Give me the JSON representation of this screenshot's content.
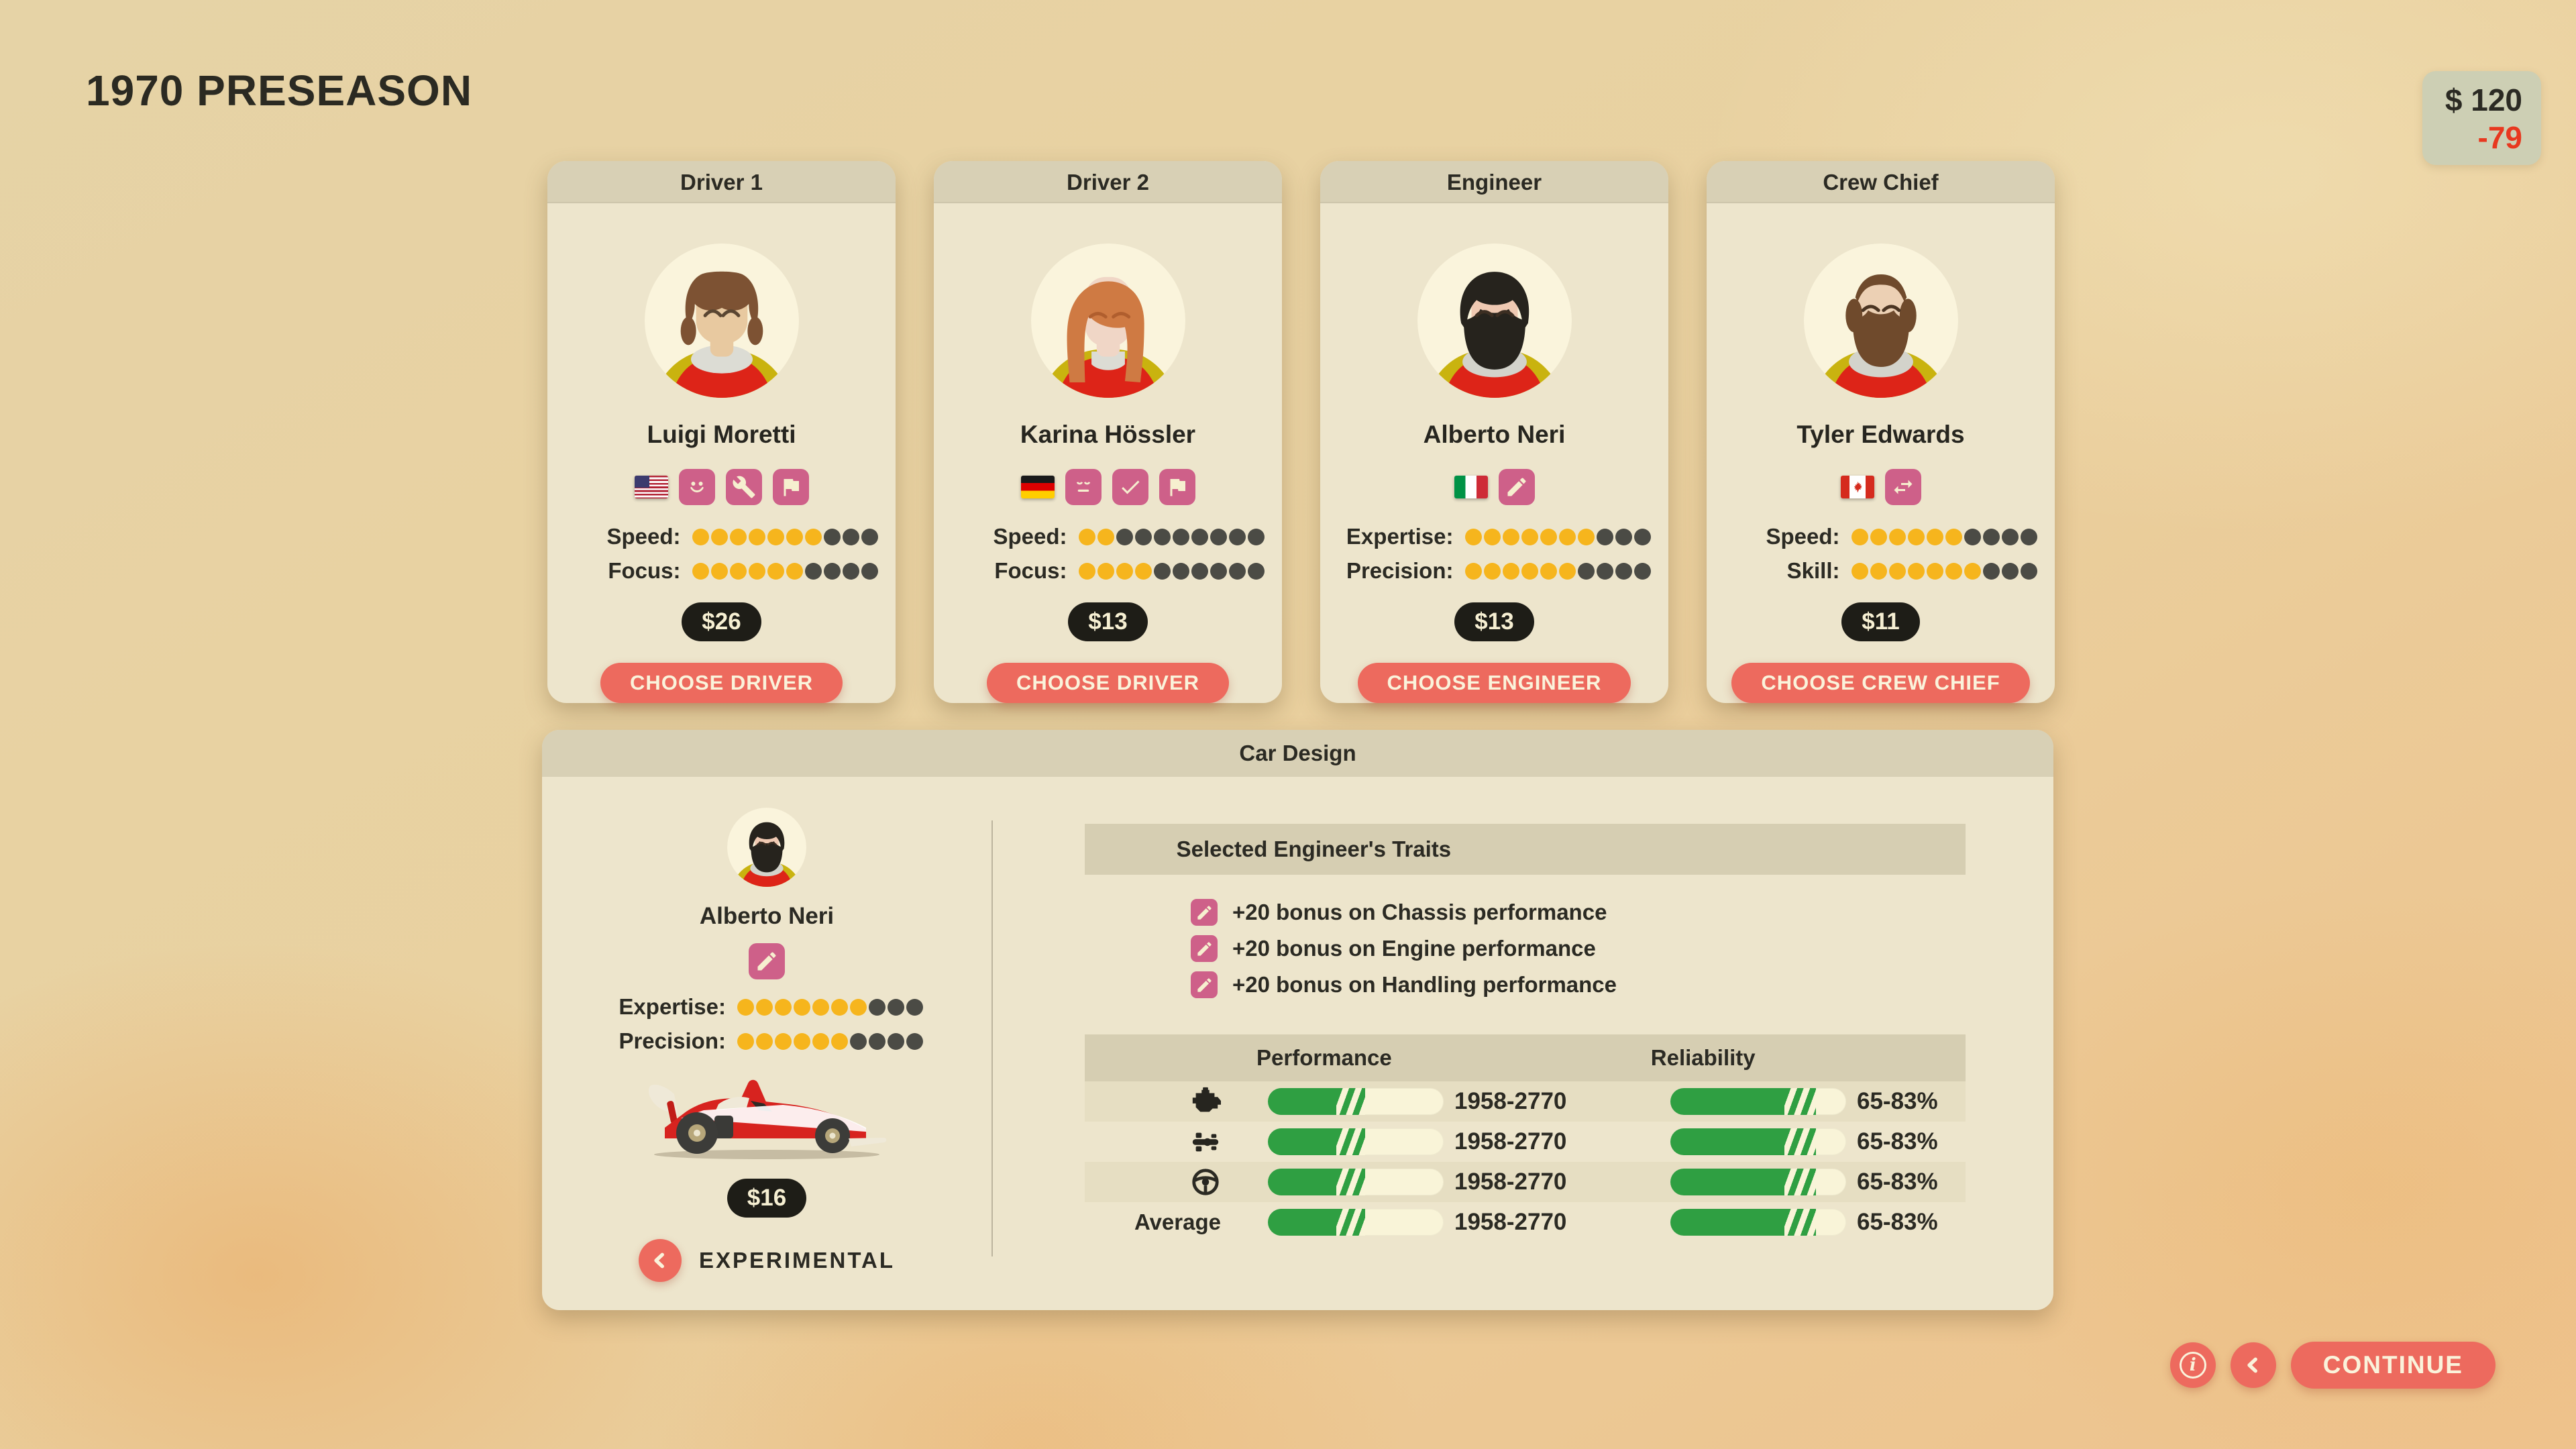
{
  "title": "1970 PRESEASON",
  "money": {
    "balance": "$ 120",
    "delta": "-79"
  },
  "colors": {
    "accent": "#ed6a5e",
    "trait_pink": "#ce6089",
    "dot_yellow": "#f6b51d",
    "dot_dark": "#4b4b45",
    "bar_green": "#2f9f42",
    "price_black": "#1e1d17"
  },
  "cards": [
    {
      "role": "Driver 1",
      "name": "Luigi Moretti",
      "flag": "us",
      "trait_icons": [
        "smile-icon",
        "wrench-icon",
        "flag-icon"
      ],
      "stats": [
        {
          "label": "Speed:",
          "value": 7,
          "max": 10
        },
        {
          "label": "Focus:",
          "value": 6,
          "max": 10
        }
      ],
      "price": "$26",
      "button": "CHOOSE DRIVER"
    },
    {
      "role": "Driver 2",
      "name": "Karina Hössler",
      "flag": "de",
      "trait_icons": [
        "sleepy-icon",
        "check-icon",
        "flag-icon"
      ],
      "stats": [
        {
          "label": "Speed:",
          "value": 2,
          "max": 10
        },
        {
          "label": "Focus:",
          "value": 4,
          "max": 10
        }
      ],
      "price": "$13",
      "button": "CHOOSE DRIVER"
    },
    {
      "role": "Engineer",
      "name": "Alberto Neri",
      "flag": "it",
      "trait_icons": [
        "pencil-icon"
      ],
      "stats": [
        {
          "label": "Expertise:",
          "value": 7,
          "max": 10
        },
        {
          "label": "Precision:",
          "value": 6,
          "max": 10
        }
      ],
      "price": "$13",
      "button": "CHOOSE ENGINEER"
    },
    {
      "role": "Crew Chief",
      "name": "Tyler Edwards",
      "flag": "ca",
      "trait_icons": [
        "swap-arrows-icon"
      ],
      "stats": [
        {
          "label": "Speed:",
          "value": 6,
          "max": 10
        },
        {
          "label": "Skill:",
          "value": 7,
          "max": 10
        }
      ],
      "price": "$11",
      "button": "CHOOSE CREW CHIEF"
    }
  ],
  "car_design": {
    "title": "Car Design",
    "engineer": {
      "name": "Alberto Neri",
      "trait_icons": [
        "pencil-icon"
      ],
      "stats": [
        {
          "label": "Expertise:",
          "value": 7,
          "max": 10
        },
        {
          "label": "Precision:",
          "value": 6,
          "max": 10
        }
      ]
    },
    "price": "$16",
    "chassis_label": "EXPERIMENTAL",
    "traits_header": "Selected Engineer's Traits",
    "traits": [
      "+20 bonus on Chassis performance",
      "+20 bonus on Engine performance",
      "+20 bonus on Handling performance"
    ],
    "table": {
      "performance_header": "Performance",
      "reliability_header": "Reliability",
      "average_label": "Average",
      "row_icons": [
        "engine-icon",
        "chassis-icon",
        "steering-wheel-icon"
      ],
      "bars": {
        "performance": {
          "fill": 39,
          "hatch": 55.5
        },
        "reliability": {
          "fill": 65,
          "hatch": 83
        }
      },
      "rows": [
        {
          "perf": "1958-2770",
          "rel": "65-83%"
        },
        {
          "perf": "1958-2770",
          "rel": "65-83%"
        },
        {
          "perf": "1958-2770",
          "rel": "65-83%"
        },
        {
          "perf": "1958-2770",
          "rel": "65-83%"
        }
      ]
    }
  },
  "footer": {
    "info_glyph": "i",
    "continue_label": "CONTINUE"
  }
}
